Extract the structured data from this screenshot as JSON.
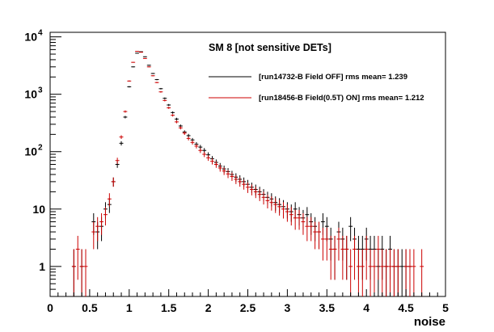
{
  "chart_data": {
    "type": "scatter",
    "title": "SM 8 [not sensitive DETs]",
    "xlabel": "noise",
    "ylabel": "",
    "xlim": [
      0,
      5
    ],
    "ylim": [
      0.3,
      12000
    ],
    "yscale": "log",
    "grid": false,
    "legend_placement": "top-right",
    "x_ticks": [
      {
        "value": 0,
        "label": "0"
      },
      {
        "value": 0.5,
        "label": "0.5"
      },
      {
        "value": 1,
        "label": "1"
      },
      {
        "value": 1.5,
        "label": "1.5"
      },
      {
        "value": 2,
        "label": "2"
      },
      {
        "value": 2.5,
        "label": "2.5"
      },
      {
        "value": 3,
        "label": "3"
      },
      {
        "value": 3.5,
        "label": "3.5"
      },
      {
        "value": 4,
        "label": "4"
      },
      {
        "value": 4.5,
        "label": "4.5"
      },
      {
        "value": 5,
        "label": "5"
      }
    ],
    "y_ticks": [
      {
        "value": 1,
        "label": "1"
      },
      {
        "value": 10,
        "label": "10"
      },
      {
        "value": 100,
        "label": "10",
        "exponent": "2"
      },
      {
        "value": 1000,
        "label": "10",
        "exponent": "3"
      },
      {
        "value": 10000,
        "label": "10",
        "exponent": "4"
      }
    ],
    "series": [
      {
        "name": "[run14732-B Field OFF] rms mean= 1.239",
        "color": "#000000",
        "x": [
          0.3,
          0.4,
          0.55,
          0.6,
          0.65,
          0.7,
          0.75,
          0.8,
          0.85,
          0.9,
          0.95,
          1.0,
          1.05,
          1.1,
          1.15,
          1.2,
          1.25,
          1.3,
          1.35,
          1.4,
          1.45,
          1.5,
          1.55,
          1.6,
          1.65,
          1.7,
          1.75,
          1.8,
          1.85,
          1.9,
          1.95,
          2.0,
          2.05,
          2.1,
          2.15,
          2.2,
          2.25,
          2.3,
          2.35,
          2.4,
          2.45,
          2.5,
          2.55,
          2.6,
          2.65,
          2.7,
          2.75,
          2.8,
          2.85,
          2.9,
          2.95,
          3.0,
          3.05,
          3.1,
          3.15,
          3.2,
          3.25,
          3.3,
          3.35,
          3.4,
          3.45,
          3.5,
          3.55,
          3.6,
          3.65,
          3.7,
          3.75,
          3.8,
          3.85,
          3.9,
          3.95,
          4.0,
          4.05,
          4.1,
          4.15,
          4.2,
          4.25,
          4.3,
          4.35,
          4.4,
          4.45,
          4.5,
          4.55
        ],
        "y": [
          1,
          1,
          6,
          4,
          5,
          10,
          12,
          30,
          60,
          140,
          400,
          1350,
          3000,
          5200,
          5500,
          4500,
          3200,
          2300,
          1800,
          1250,
          850,
          650,
          480,
          370,
          280,
          220,
          190,
          160,
          135,
          120,
          105,
          88,
          75,
          65,
          56,
          50,
          45,
          40,
          36,
          33,
          30,
          27,
          24,
          22,
          20,
          18,
          16,
          15,
          13,
          12,
          11,
          10,
          9,
          10,
          8,
          7,
          8,
          6,
          5,
          4,
          6,
          5,
          3,
          2,
          4,
          3,
          2,
          5,
          3,
          2,
          2,
          3,
          2,
          2,
          1,
          2,
          1,
          2,
          1,
          1,
          1,
          1,
          1
        ]
      },
      {
        "name": "[run18456-B Field(0.5T) ON] rms mean= 1.212",
        "color": "#cc0000",
        "x": [
          0.3,
          0.35,
          0.4,
          0.45,
          0.55,
          0.6,
          0.65,
          0.7,
          0.75,
          0.8,
          0.85,
          0.9,
          0.95,
          1.0,
          1.05,
          1.1,
          1.15,
          1.2,
          1.25,
          1.3,
          1.35,
          1.4,
          1.45,
          1.5,
          1.55,
          1.6,
          1.65,
          1.7,
          1.75,
          1.8,
          1.85,
          1.9,
          1.95,
          2.0,
          2.05,
          2.1,
          2.15,
          2.2,
          2.25,
          2.3,
          2.35,
          2.4,
          2.45,
          2.5,
          2.55,
          2.6,
          2.65,
          2.7,
          2.75,
          2.8,
          2.85,
          2.9,
          2.95,
          3.0,
          3.05,
          3.1,
          3.15,
          3.2,
          3.25,
          3.3,
          3.35,
          3.4,
          3.45,
          3.5,
          3.55,
          3.6,
          3.65,
          3.7,
          3.75,
          3.8,
          3.85,
          3.9,
          3.95,
          4.0,
          4.05,
          4.1,
          4.15,
          4.2,
          4.25,
          4.3,
          4.35,
          4.4,
          4.5,
          4.55,
          4.6,
          4.7
        ],
        "y": [
          1,
          2,
          1,
          1,
          4,
          5,
          6,
          8,
          15,
          30,
          70,
          180,
          500,
          1700,
          3600,
          5600,
          5400,
          4200,
          3000,
          2100,
          1600,
          1100,
          780,
          580,
          430,
          330,
          260,
          210,
          170,
          145,
          125,
          105,
          90,
          78,
          68,
          60,
          52,
          46,
          41,
          37,
          33,
          30,
          27,
          24,
          22,
          20,
          18,
          16,
          14,
          13,
          12,
          11,
          10,
          9,
          8,
          7,
          7,
          6,
          5,
          5,
          4,
          4,
          3,
          3,
          2,
          2,
          3,
          2,
          2,
          1,
          2,
          1,
          1,
          2,
          1,
          1,
          2,
          1,
          1,
          1,
          1,
          1,
          1,
          1,
          1,
          1
        ]
      }
    ]
  }
}
